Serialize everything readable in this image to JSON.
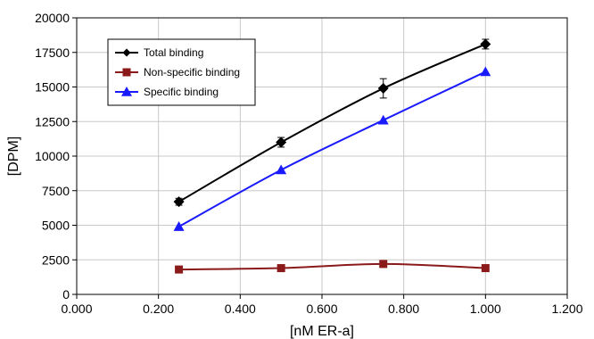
{
  "chart_data": {
    "type": "line",
    "title": "",
    "xlabel": "[nM ER-a]",
    "ylabel": "[DPM]",
    "xlim": [
      0,
      1.2
    ],
    "ylim": [
      0,
      20000
    ],
    "x_ticks": [
      0,
      0.2,
      0.4,
      0.6,
      0.8,
      1.0,
      1.2
    ],
    "x_tick_labels": [
      "0.000",
      "0.200",
      "0.400",
      "0.600",
      "0.800",
      "1.000",
      "1.200"
    ],
    "y_ticks": [
      0,
      2500,
      5000,
      7500,
      10000,
      12500,
      15000,
      17500,
      20000
    ],
    "y_tick_labels": [
      "0",
      "2500",
      "5000",
      "7500",
      "10000",
      "12500",
      "15000",
      "17500",
      "20000"
    ],
    "grid": true,
    "legend_position": "top-left",
    "series": [
      {
        "name": "Total binding",
        "color": "#000000",
        "marker": "diamond",
        "x": [
          0.25,
          0.5,
          0.75,
          1.0
        ],
        "y": [
          6700,
          11000,
          14900,
          18100
        ],
        "error": [
          250,
          350,
          700,
          350
        ]
      },
      {
        "name": "Non-specific binding",
        "color": "#8b1a1a",
        "marker": "square",
        "x": [
          0.25,
          0.5,
          0.75,
          1.0
        ],
        "y": [
          1800,
          1900,
          2200,
          1900
        ]
      },
      {
        "name": "Specific binding",
        "color": "#1a1aff",
        "marker": "triangle",
        "x": [
          0.25,
          0.5,
          0.75,
          1.0
        ],
        "y": [
          4900,
          9000,
          12600,
          16100
        ]
      }
    ]
  }
}
